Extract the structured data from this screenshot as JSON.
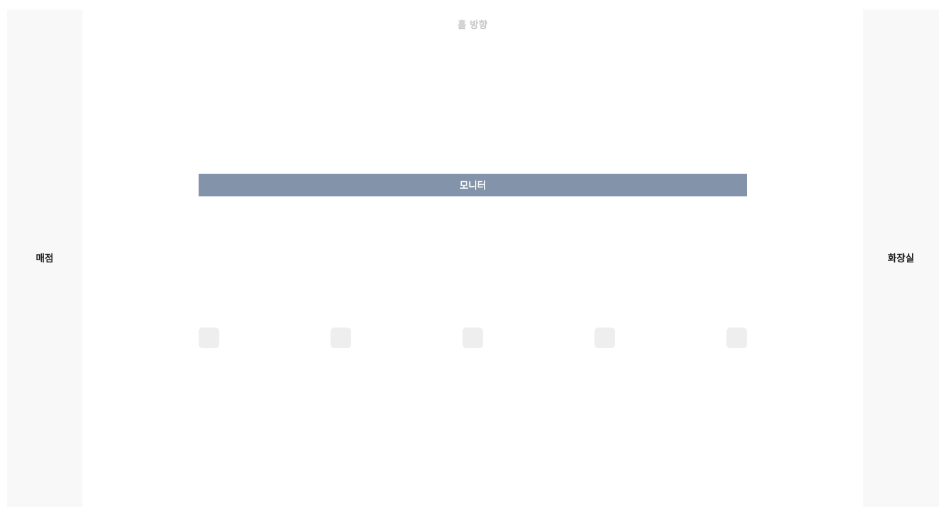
{
  "colors": {
    "background": "#ffffff",
    "side_panel": "#f8f8f8",
    "monitor": "#8293aa",
    "seat": "#eeeeee",
    "hall_label": "#c8c8c8"
  },
  "hall_direction_label": "홀 방향",
  "left_panel": {
    "label": "매점"
  },
  "right_panel": {
    "label": "화장실"
  },
  "monitor": {
    "label": "모니터"
  },
  "seats": [
    {
      "state": "available"
    },
    {
      "state": "available"
    },
    {
      "state": "available"
    },
    {
      "state": "available"
    },
    {
      "state": "available"
    }
  ]
}
